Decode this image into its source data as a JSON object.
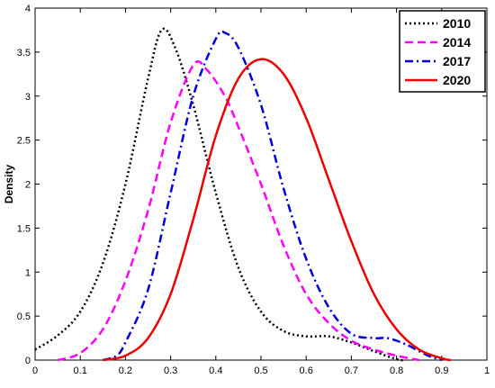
{
  "chart_data": {
    "type": "line",
    "title": "",
    "xlabel": "",
    "ylabel": "Density",
    "xlim": [
      0,
      1
    ],
    "ylim": [
      0,
      4
    ],
    "grid": false,
    "legend_placement": "top-right",
    "x_ticks": [
      "0",
      "0.1",
      "0.2",
      "0.3",
      "0.4",
      "0.5",
      "0.6",
      "0.7",
      "0.8",
      "0.9",
      "1"
    ],
    "y_ticks": [
      "0",
      "0.5",
      "1",
      "1.5",
      "2",
      "2.5",
      "3",
      "3.5",
      "4"
    ],
    "series": [
      {
        "name": "2010",
        "color": "#000000",
        "style": "dotted",
        "points": [
          [
            0,
            0.12
          ],
          [
            0.05,
            0.28
          ],
          [
            0.1,
            0.55
          ],
          [
            0.15,
            1.1
          ],
          [
            0.2,
            2.0
          ],
          [
            0.25,
            3.2
          ],
          [
            0.28,
            3.75
          ],
          [
            0.31,
            3.55
          ],
          [
            0.35,
            2.9
          ],
          [
            0.4,
            1.9
          ],
          [
            0.45,
            1.05
          ],
          [
            0.5,
            0.55
          ],
          [
            0.55,
            0.33
          ],
          [
            0.6,
            0.27
          ],
          [
            0.65,
            0.27
          ],
          [
            0.7,
            0.2
          ],
          [
            0.75,
            0.1
          ],
          [
            0.8,
            0.01
          ],
          [
            0.82,
            0
          ]
        ]
      },
      {
        "name": "2014",
        "color": "#ff00ff",
        "style": "dashed",
        "points": [
          [
            0.05,
            0.0
          ],
          [
            0.1,
            0.08
          ],
          [
            0.15,
            0.35
          ],
          [
            0.2,
            0.9
          ],
          [
            0.25,
            1.7
          ],
          [
            0.3,
            2.7
          ],
          [
            0.35,
            3.35
          ],
          [
            0.38,
            3.3
          ],
          [
            0.42,
            3.0
          ],
          [
            0.45,
            2.65
          ],
          [
            0.5,
            2.0
          ],
          [
            0.55,
            1.3
          ],
          [
            0.6,
            0.75
          ],
          [
            0.65,
            0.42
          ],
          [
            0.7,
            0.22
          ],
          [
            0.75,
            0.12
          ],
          [
            0.8,
            0.05
          ],
          [
            0.85,
            0.0
          ]
        ]
      },
      {
        "name": "2017",
        "color": "#0000dd",
        "style": "dashdot",
        "points": [
          [
            0.15,
            0.0
          ],
          [
            0.18,
            0.05
          ],
          [
            0.2,
            0.2
          ],
          [
            0.25,
            0.8
          ],
          [
            0.3,
            1.9
          ],
          [
            0.35,
            3.0
          ],
          [
            0.4,
            3.65
          ],
          [
            0.42,
            3.72
          ],
          [
            0.45,
            3.55
          ],
          [
            0.5,
            2.9
          ],
          [
            0.55,
            1.95
          ],
          [
            0.6,
            1.15
          ],
          [
            0.65,
            0.6
          ],
          [
            0.7,
            0.3
          ],
          [
            0.75,
            0.25
          ],
          [
            0.78,
            0.25
          ],
          [
            0.82,
            0.18
          ],
          [
            0.87,
            0.05
          ],
          [
            0.9,
            0.0
          ]
        ]
      },
      {
        "name": "2020",
        "color": "#ee0000",
        "style": "solid",
        "points": [
          [
            0.15,
            0.0
          ],
          [
            0.2,
            0.05
          ],
          [
            0.25,
            0.25
          ],
          [
            0.3,
            0.75
          ],
          [
            0.35,
            1.6
          ],
          [
            0.4,
            2.55
          ],
          [
            0.45,
            3.2
          ],
          [
            0.5,
            3.42
          ],
          [
            0.55,
            3.25
          ],
          [
            0.6,
            2.75
          ],
          [
            0.65,
            2.05
          ],
          [
            0.7,
            1.35
          ],
          [
            0.75,
            0.75
          ],
          [
            0.8,
            0.35
          ],
          [
            0.85,
            0.12
          ],
          [
            0.9,
            0.02
          ],
          [
            0.92,
            0.0
          ]
        ]
      }
    ]
  }
}
